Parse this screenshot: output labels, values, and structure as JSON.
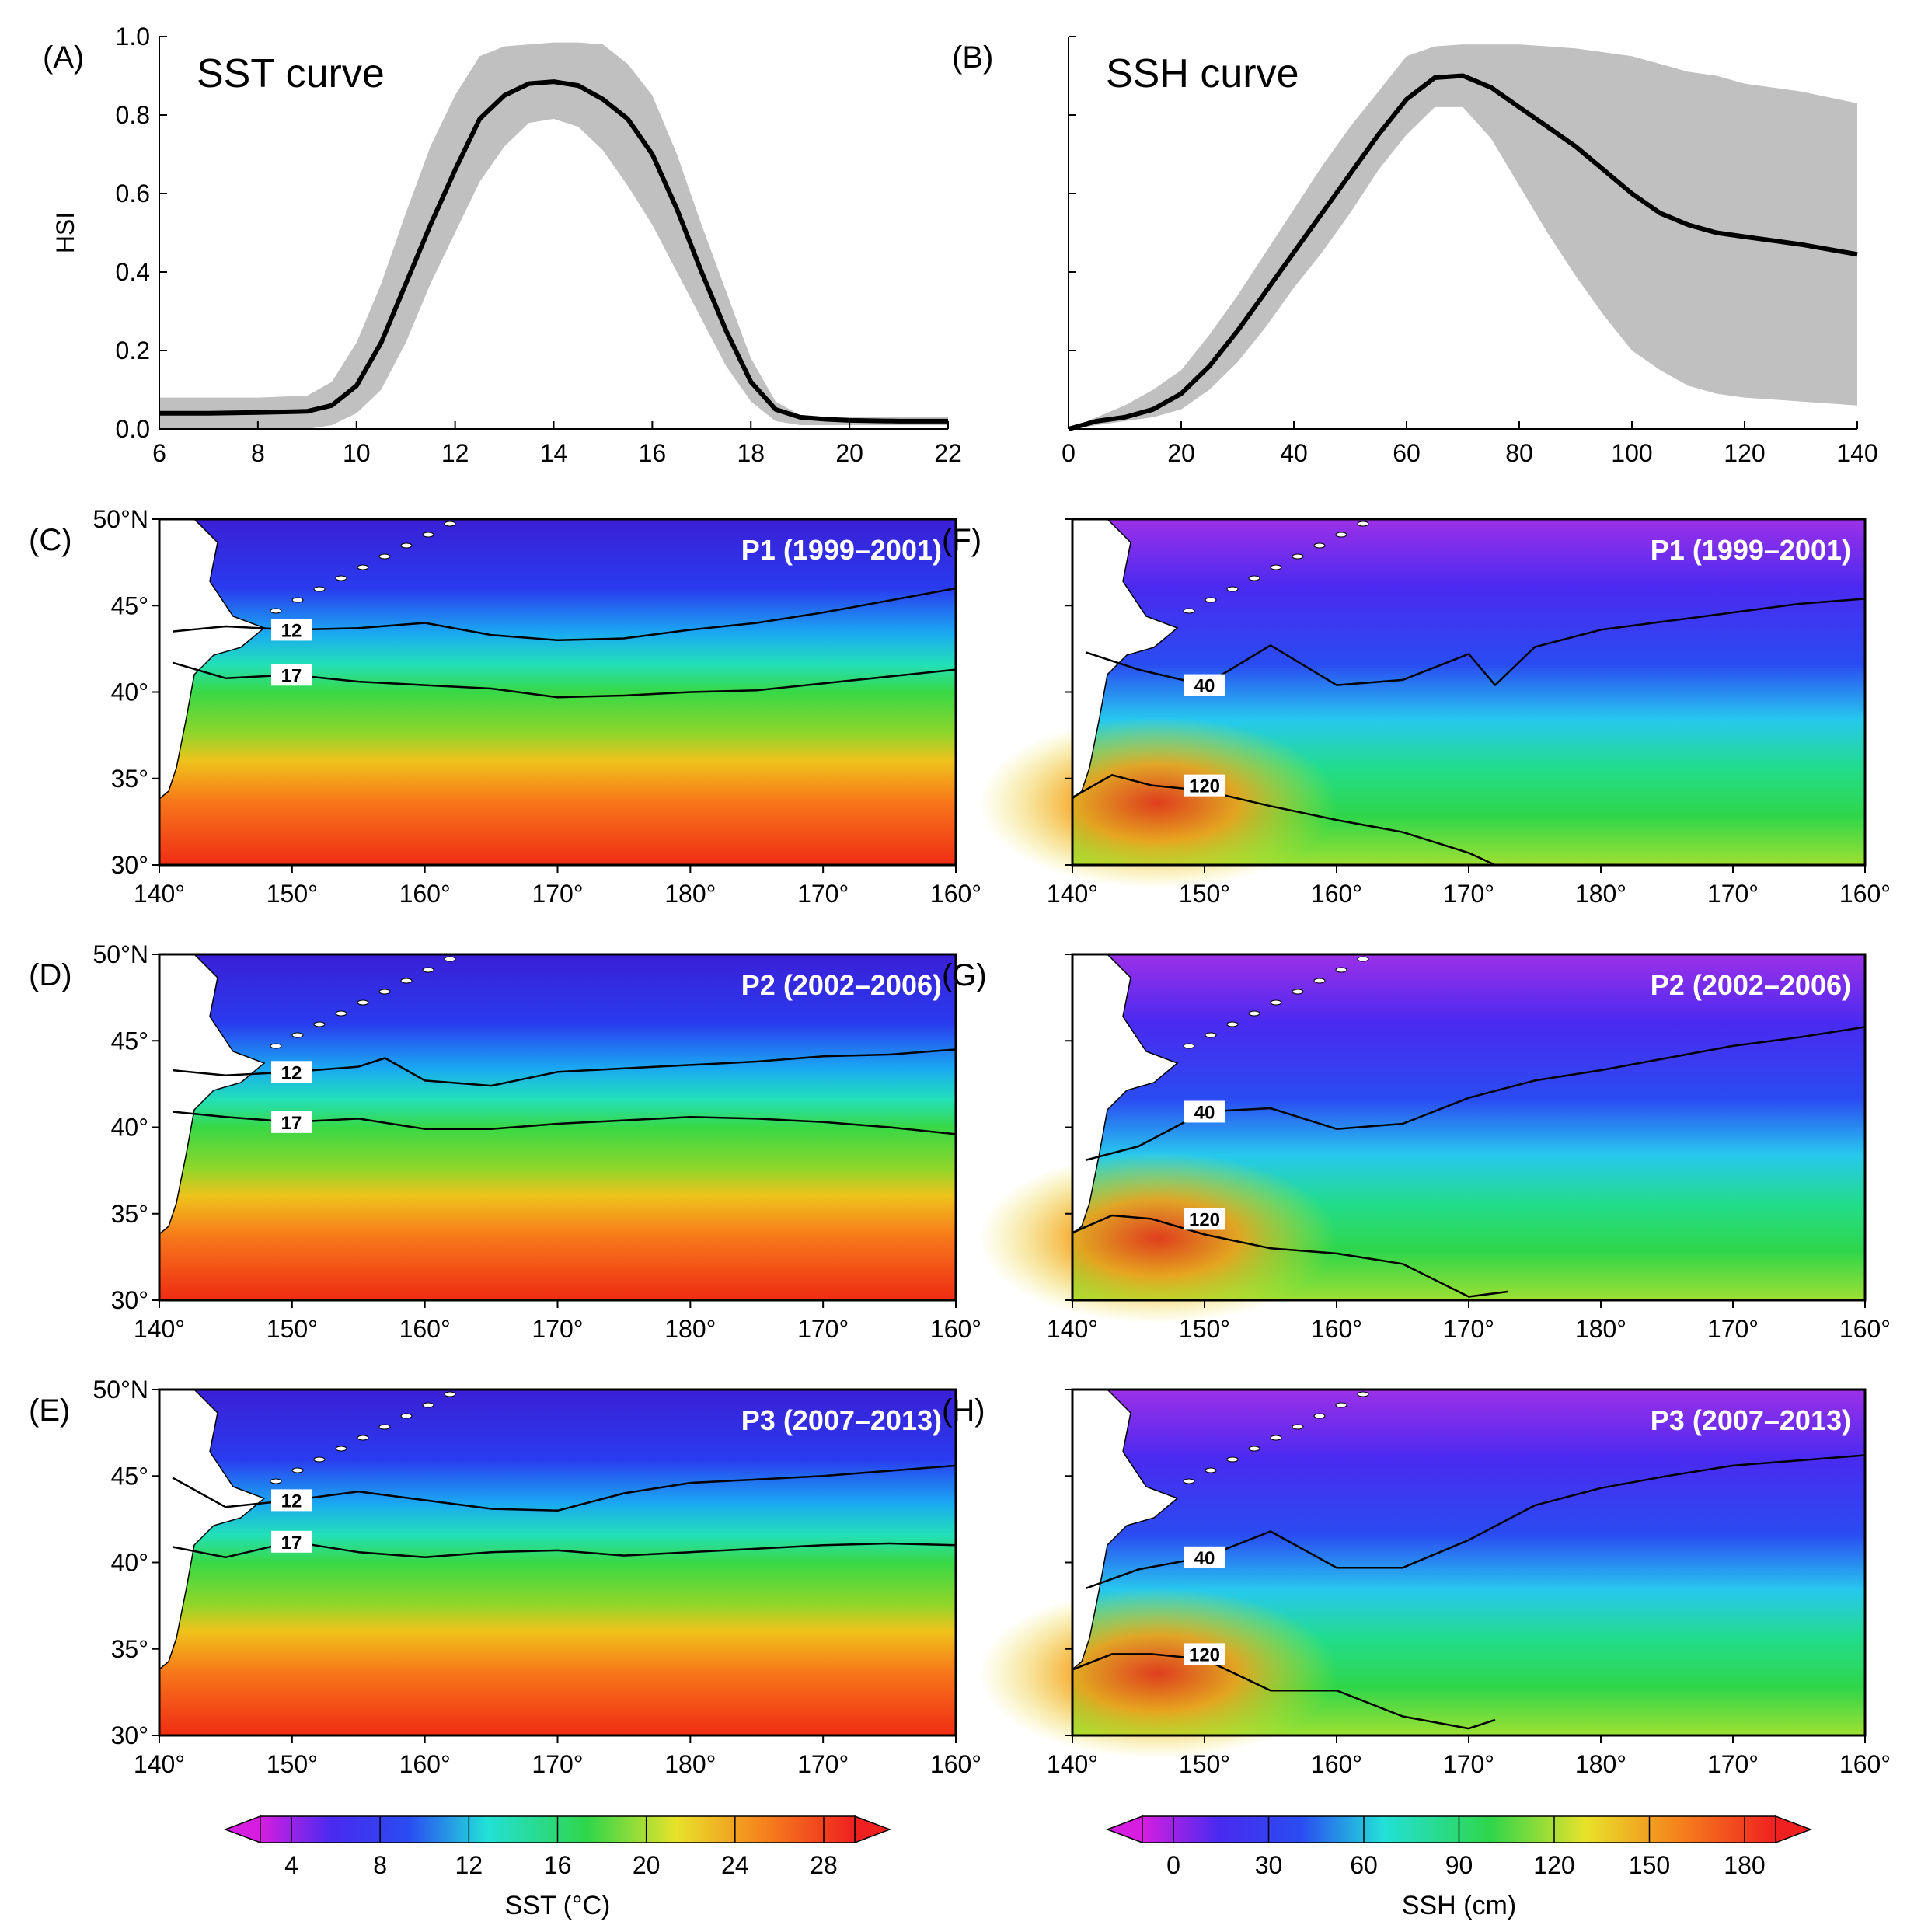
{
  "chart_data": [
    {
      "type": "line",
      "panel": "(A)",
      "title": "SST curve",
      "xlabel": "",
      "ylabel": "HSI",
      "xlim": [
        6,
        22
      ],
      "ylim": [
        0,
        1
      ],
      "xticks": [
        "6",
        "8",
        "10",
        "12",
        "14",
        "16",
        "18",
        "20",
        "22"
      ],
      "yticks": [
        "0.0",
        "0.2",
        "0.4",
        "0.6",
        "0.8",
        "1.0"
      ],
      "x": [
        6,
        7,
        8,
        9,
        9.5,
        10,
        10.5,
        11,
        11.5,
        12,
        12.5,
        13,
        13.5,
        14,
        14.5,
        15,
        15.5,
        16,
        16.5,
        17,
        17.5,
        18,
        18.5,
        19,
        19.5,
        20,
        21,
        22
      ],
      "mean": [
        0.04,
        0.04,
        0.042,
        0.045,
        0.06,
        0.11,
        0.22,
        0.37,
        0.52,
        0.66,
        0.79,
        0.85,
        0.88,
        0.885,
        0.875,
        0.84,
        0.79,
        0.7,
        0.56,
        0.4,
        0.25,
        0.12,
        0.05,
        0.03,
        0.025,
        0.022,
        0.02,
        0.02
      ],
      "upper": [
        0.08,
        0.08,
        0.08,
        0.085,
        0.12,
        0.22,
        0.37,
        0.55,
        0.72,
        0.85,
        0.95,
        0.975,
        0.98,
        0.985,
        0.985,
        0.98,
        0.93,
        0.85,
        0.7,
        0.52,
        0.35,
        0.18,
        0.07,
        0.035,
        0.03,
        0.03,
        0.03,
        0.03
      ],
      "lower": [
        0.0,
        0.0,
        0.0,
        0.0,
        0.01,
        0.04,
        0.1,
        0.22,
        0.37,
        0.5,
        0.63,
        0.72,
        0.78,
        0.79,
        0.77,
        0.71,
        0.62,
        0.52,
        0.4,
        0.28,
        0.16,
        0.07,
        0.02,
        0.01,
        0.01,
        0.01,
        0.01,
        0.01
      ]
    },
    {
      "type": "line",
      "panel": "(B)",
      "title": "SSH curve",
      "xlabel": "",
      "ylabel": "",
      "xlim": [
        0,
        140
      ],
      "ylim": [
        0,
        1
      ],
      "xticks": [
        "0",
        "20",
        "40",
        "60",
        "80",
        "100",
        "120",
        "140"
      ],
      "x": [
        0,
        5,
        10,
        15,
        20,
        25,
        30,
        35,
        40,
        45,
        50,
        55,
        60,
        65,
        70,
        75,
        80,
        85,
        90,
        95,
        100,
        105,
        110,
        115,
        120,
        130,
        140
      ],
      "mean": [
        0.0,
        0.02,
        0.03,
        0.05,
        0.09,
        0.16,
        0.25,
        0.35,
        0.45,
        0.55,
        0.65,
        0.75,
        0.84,
        0.895,
        0.9,
        0.87,
        0.82,
        0.77,
        0.72,
        0.66,
        0.6,
        0.55,
        0.52,
        0.5,
        0.49,
        0.47,
        0.445
      ],
      "upper": [
        0.0,
        0.03,
        0.06,
        0.1,
        0.15,
        0.24,
        0.34,
        0.45,
        0.56,
        0.67,
        0.77,
        0.86,
        0.95,
        0.975,
        0.98,
        0.98,
        0.98,
        0.975,
        0.97,
        0.96,
        0.95,
        0.93,
        0.91,
        0.9,
        0.88,
        0.86,
        0.83
      ],
      "lower": [
        0.0,
        0.01,
        0.02,
        0.03,
        0.05,
        0.1,
        0.17,
        0.26,
        0.36,
        0.45,
        0.55,
        0.66,
        0.75,
        0.82,
        0.82,
        0.74,
        0.62,
        0.5,
        0.39,
        0.29,
        0.2,
        0.15,
        0.11,
        0.09,
        0.08,
        0.07,
        0.06
      ]
    },
    {
      "type": "heatmap",
      "panel": "(C)",
      "variable": "SST",
      "period": "P1 (1999–2001)",
      "xticks": [
        "140°",
        "150°",
        "160°",
        "170°",
        "180°",
        "170°",
        "160°"
      ],
      "yticks": [
        "50°N",
        "45°",
        "40°",
        "35°",
        "30°"
      ],
      "contours": [
        {
          "label": "12",
          "lon": [
            141,
            145,
            150,
            155,
            160,
            165,
            170,
            175,
            180,
            185,
            190,
            195,
            200
          ],
          "lat": [
            43.5,
            43.8,
            43.6,
            43.7,
            44.0,
            43.3,
            43.0,
            43.1,
            43.6,
            44.0,
            44.6,
            45.3,
            46.0
          ]
        },
        {
          "label": "17",
          "lon": [
            141,
            145,
            150,
            155,
            160,
            165,
            170,
            175,
            180,
            185,
            190,
            195,
            200
          ],
          "lat": [
            41.7,
            40.8,
            41.0,
            40.6,
            40.4,
            40.2,
            39.7,
            39.8,
            40.0,
            40.1,
            40.5,
            40.9,
            41.3
          ]
        }
      ]
    },
    {
      "type": "heatmap",
      "panel": "(D)",
      "variable": "SST",
      "period": "P2 (2002–2006)",
      "xticks": [
        "140°",
        "150°",
        "160°",
        "170°",
        "180°",
        "170°",
        "160°"
      ],
      "yticks": [
        "50°N",
        "45°",
        "40°",
        "35°",
        "30°"
      ],
      "contours": [
        {
          "label": "12",
          "lon": [
            141,
            145,
            150,
            155,
            157,
            160,
            165,
            170,
            175,
            180,
            185,
            190,
            195,
            200
          ],
          "lat": [
            43.3,
            43.0,
            43.2,
            43.5,
            44.0,
            42.7,
            42.4,
            43.2,
            43.4,
            43.6,
            43.8,
            44.1,
            44.2,
            44.5
          ]
        },
        {
          "label": "17",
          "lon": [
            141,
            145,
            150,
            155,
            160,
            165,
            170,
            175,
            180,
            185,
            190,
            195,
            200
          ],
          "lat": [
            40.9,
            40.6,
            40.3,
            40.5,
            39.9,
            39.9,
            40.2,
            40.4,
            40.6,
            40.5,
            40.3,
            40.0,
            39.6
          ]
        }
      ]
    },
    {
      "type": "heatmap",
      "panel": "(E)",
      "variable": "SST",
      "period": "P3 (2007–2013)",
      "xticks": [
        "140°",
        "150°",
        "160°",
        "170°",
        "180°",
        "170°",
        "160°"
      ],
      "yticks": [
        "50°N",
        "45°",
        "40°",
        "35°",
        "30°"
      ],
      "contours": [
        {
          "label": "12",
          "lon": [
            141,
            145,
            150,
            155,
            160,
            165,
            170,
            175,
            180,
            185,
            190,
            195,
            200
          ],
          "lat": [
            44.9,
            43.2,
            43.6,
            44.1,
            43.6,
            43.1,
            43.0,
            44.0,
            44.6,
            44.8,
            45.0,
            45.3,
            45.6
          ]
        },
        {
          "label": "17",
          "lon": [
            141,
            145,
            150,
            155,
            160,
            165,
            170,
            175,
            180,
            185,
            190,
            195,
            200
          ],
          "lat": [
            40.9,
            40.3,
            41.2,
            40.6,
            40.3,
            40.6,
            40.7,
            40.4,
            40.6,
            40.8,
            41.0,
            41.1,
            41.0
          ]
        }
      ]
    },
    {
      "type": "heatmap",
      "panel": "(F)",
      "variable": "SSH",
      "period": "P1 (1999–2001)",
      "xticks": [
        "140°",
        "150°",
        "160°",
        "170°",
        "180°",
        "170°",
        "160°"
      ],
      "yticks": [],
      "contours": [
        {
          "label": "40",
          "lon": [
            141,
            145,
            150,
            155,
            160,
            165,
            170,
            172,
            175,
            180,
            185,
            190,
            195,
            200
          ],
          "lat": [
            42.3,
            41.3,
            40.4,
            42.7,
            40.4,
            40.7,
            42.2,
            40.4,
            42.6,
            43.6,
            44.1,
            44.6,
            45.1,
            45.4
          ]
        },
        {
          "label": "120",
          "lon": [
            140,
            143,
            146,
            150,
            155,
            160,
            165,
            170,
            172
          ],
          "lat": [
            33.9,
            35.2,
            34.6,
            34.3,
            33.4,
            32.6,
            31.9,
            30.7,
            30.0
          ]
        }
      ]
    },
    {
      "type": "heatmap",
      "panel": "(G)",
      "variable": "SSH",
      "period": "P2 (2002–2006)",
      "xticks": [
        "140°",
        "150°",
        "160°",
        "170°",
        "180°",
        "170°",
        "160°"
      ],
      "yticks": [],
      "contours": [
        {
          "label": "40",
          "lon": [
            141,
            145,
            150,
            155,
            160,
            165,
            170,
            175,
            180,
            185,
            190,
            195,
            200
          ],
          "lat": [
            38.1,
            38.9,
            40.9,
            41.1,
            39.9,
            40.2,
            41.7,
            42.7,
            43.3,
            44.0,
            44.7,
            45.2,
            45.8
          ]
        },
        {
          "label": "120",
          "lon": [
            140,
            143,
            146,
            150,
            155,
            160,
            165,
            170,
            173
          ],
          "lat": [
            33.9,
            34.9,
            34.7,
            33.8,
            33.0,
            32.7,
            32.1,
            30.2,
            30.5
          ]
        }
      ]
    },
    {
      "type": "heatmap",
      "panel": "(H)",
      "variable": "SSH",
      "period": "P3 (2007–2013)",
      "xticks": [
        "140°",
        "150°",
        "160°",
        "170°",
        "180°",
        "170°",
        "160°"
      ],
      "yticks": [],
      "contours": [
        {
          "label": "40",
          "lon": [
            141,
            145,
            150,
            155,
            160,
            165,
            170,
            175,
            180,
            185,
            190,
            195,
            200
          ],
          "lat": [
            38.5,
            39.6,
            40.3,
            41.8,
            39.7,
            39.7,
            41.3,
            43.3,
            44.3,
            45.0,
            45.6,
            45.9,
            46.2
          ]
        },
        {
          "label": "120",
          "lon": [
            140,
            143,
            146,
            150,
            155,
            160,
            165,
            170,
            172
          ],
          "lat": [
            33.8,
            34.7,
            34.7,
            34.4,
            32.6,
            32.6,
            31.1,
            30.4,
            30.9
          ]
        }
      ]
    }
  ],
  "panel_letters": {
    "a": "(A)",
    "b": "(B)",
    "c": "(C)",
    "d": "(D)",
    "e": "(E)",
    "f": "(F)",
    "g": "(G)",
    "h": "(H)"
  },
  "colorbars": {
    "sst": {
      "label": "SST (°C)",
      "ticks": [
        "4",
        "8",
        "12",
        "16",
        "20",
        "24",
        "28"
      ]
    },
    "ssh": {
      "label": "SSH (cm)",
      "ticks": [
        "0",
        "30",
        "60",
        "90",
        "120",
        "150",
        "180"
      ]
    }
  },
  "colors": {
    "band": "#c0c0c0",
    "curve": "#000000",
    "land": "#ffffff"
  }
}
